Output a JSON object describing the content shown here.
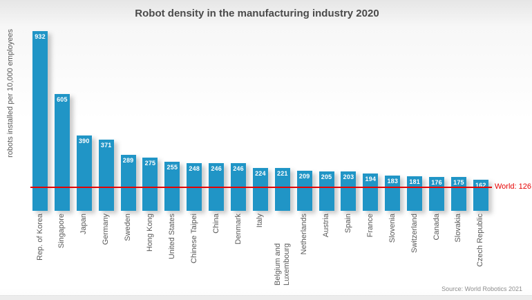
{
  "page": {
    "title": "Robot density in the manufacturing industry 2020",
    "source": "Source: World Robotics 2021"
  },
  "colors": {
    "bar": "#2095c6",
    "reference_line": "#e60000",
    "title_text": "#4a4a4a",
    "axis_text": "#595959",
    "value_text": "#ffffff",
    "source_text": "#8c8c8c"
  },
  "chart_data": {
    "type": "bar",
    "title": "Robot density in the manufacturing industry 2020",
    "ylabel": "robots installed per 10,000 employees",
    "xlabel": "",
    "categories": [
      "Rep. of Korea",
      "Singapore",
      "Japan",
      "Germany",
      "Sweden",
      "Hong Kong",
      "United States",
      "Chinese Taipei",
      "China",
      "Denmark",
      "Italy",
      "Belgium and Luxembourg",
      "Netherlands",
      "Austria",
      "Spain",
      "France",
      "Slovenia",
      "Switzerland",
      "Canada",
      "Slovakia",
      "Czech Republic"
    ],
    "values": [
      932,
      605,
      390,
      371,
      289,
      275,
      255,
      248,
      246,
      246,
      224,
      221,
      209,
      205,
      203,
      194,
      183,
      181,
      176,
      175,
      162
    ],
    "value_labels": "inside-top",
    "reference_line": {
      "value": 126,
      "label": "World: 126"
    },
    "ylim": [
      0,
      950
    ],
    "grid": false,
    "legend": false,
    "source": "Source: World Robotics 2021"
  }
}
